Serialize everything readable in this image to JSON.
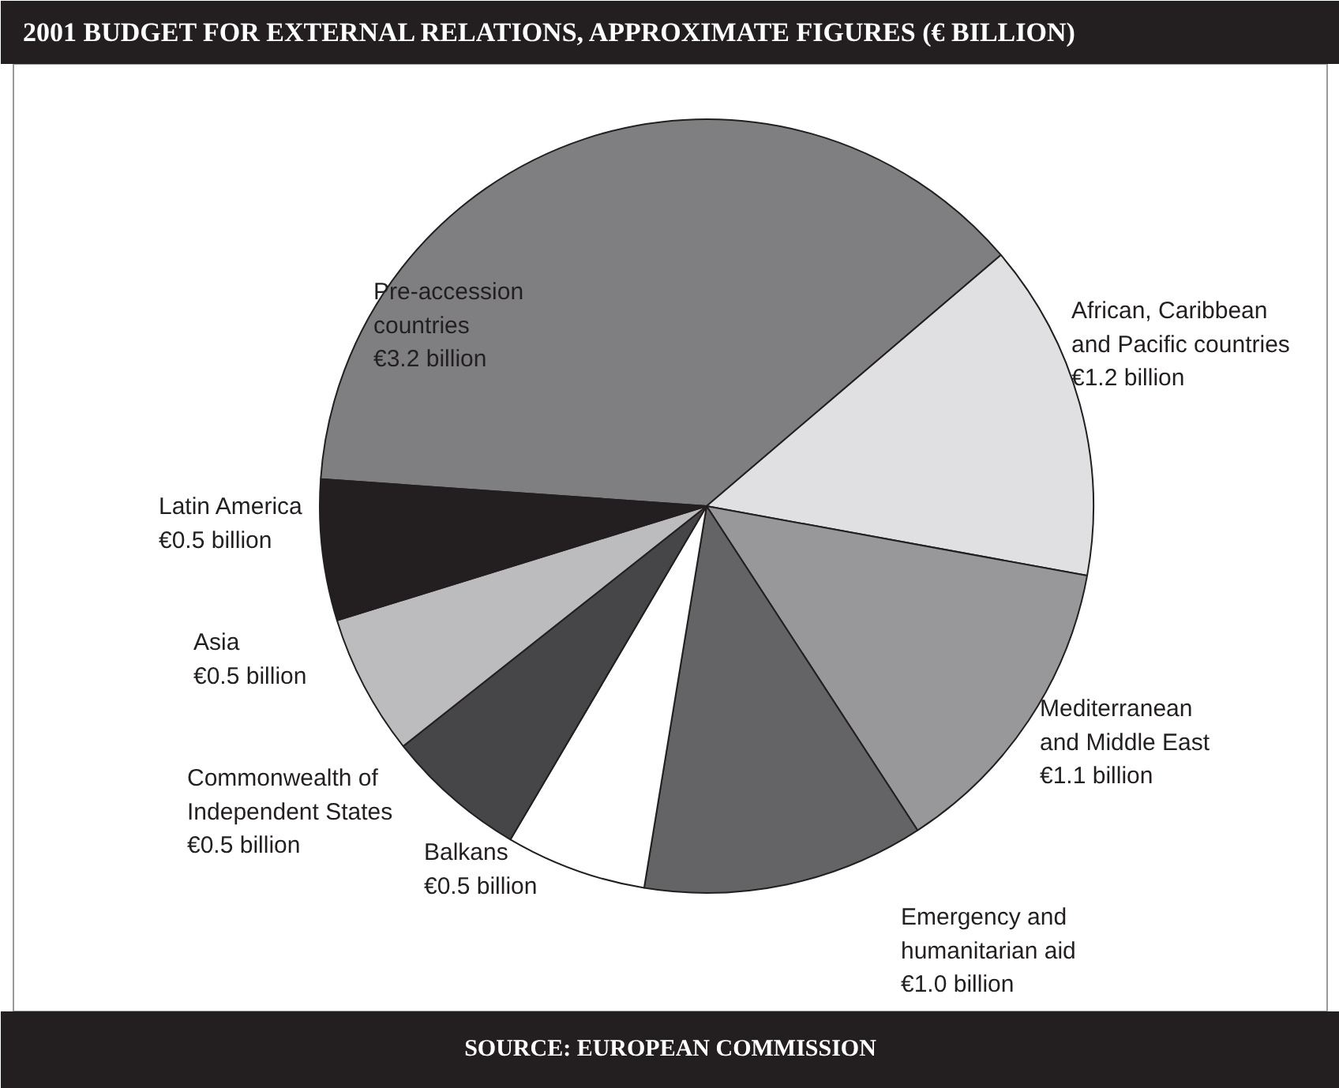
{
  "chart_data": {
    "type": "pie",
    "title": "2001 BUDGET FOR EXTERNAL RELATIONS, APPROXIMATE FIGURES (€ BILLION)",
    "categories": [
      "Pre-accession\ncountries",
      "African, Caribbean\nand Pacific countries",
      "Mediterranean\nand Middle East",
      "Emergency and\nhumanitarian aid",
      "Balkans",
      "Commonwealth of\nIndependent States",
      "Asia",
      "Latin America"
    ],
    "values": [
      3.2,
      1.2,
      1.1,
      1.0,
      0.5,
      0.5,
      0.5,
      0.5
    ],
    "value_labels": [
      "€3.2 billion",
      "€1.2 billion",
      "€1.1 billion",
      "€1.0 billion",
      "€0.5 billion",
      "€0.5 billion",
      "€0.5 billion",
      "€0.5 billion"
    ],
    "colors": [
      "#7f7f81",
      "#e0e0e2",
      "#98989a",
      "#646466",
      "#ffffff",
      "#464648",
      "#bcbcbe",
      "#231f20"
    ],
    "annotations": [
      "SOURCE: EUROPEAN COMMISSION"
    ]
  }
}
